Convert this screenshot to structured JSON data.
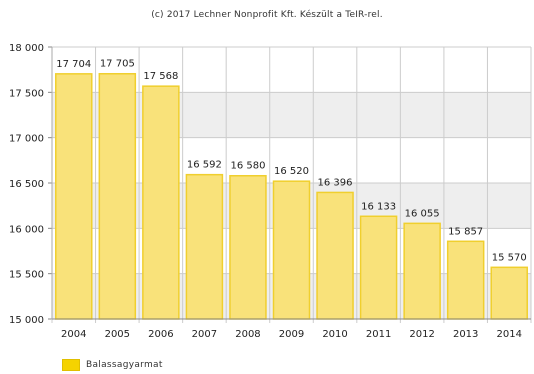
{
  "caption": "(c) 2017 Lechner Nonprofit Kft. Készült a TeIR-rel.",
  "colors": {
    "bar_fill": "#f9e27a",
    "bar_stroke": "#f0cf2e",
    "band": "#eeeeee",
    "grid": "#cccccc",
    "legend": "#f5d300"
  },
  "chart_data": {
    "type": "bar",
    "title": "",
    "xlabel": "",
    "ylabel": "",
    "ylim": [
      15000,
      18000
    ],
    "yticks": [
      "18 000",
      "17 500",
      "17 000",
      "16 500",
      "16 000",
      "15 500",
      "15 000"
    ],
    "ytick_values": [
      18000,
      17500,
      17000,
      16500,
      16000,
      15500,
      15000
    ],
    "categories": [
      "2004",
      "2005",
      "2006",
      "2007",
      "2008",
      "2009",
      "2010",
      "2011",
      "2012",
      "2013",
      "2014"
    ],
    "series": [
      {
        "name": "Balassagyarmat",
        "values": [
          17704,
          17705,
          17568,
          16592,
          16580,
          16520,
          16396,
          16133,
          16055,
          15857,
          15570
        ],
        "labels": [
          "17 704",
          "17 705",
          "17 568",
          "16 592",
          "16 580",
          "16 520",
          "16 396",
          "16 133",
          "16 055",
          "15 857",
          "15 570"
        ]
      }
    ],
    "grid": true,
    "legend": "bottom-left"
  }
}
